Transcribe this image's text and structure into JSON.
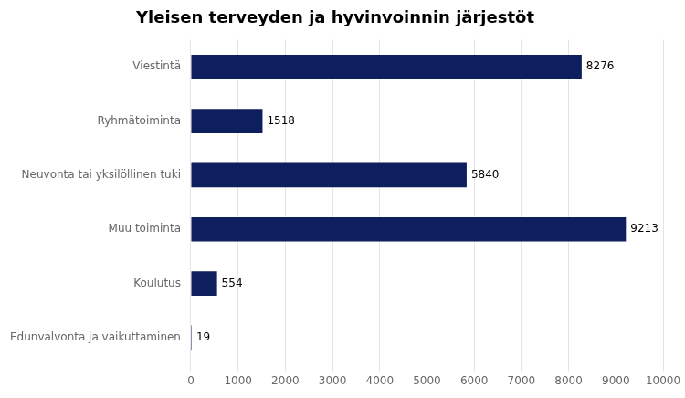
{
  "chart_data": {
    "type": "bar",
    "orientation": "horizontal",
    "title": "Yleisen terveyden ja hyvinvoinnin järjestöt",
    "categories": [
      "Viestintä",
      "Ryhmätoiminta",
      "Neuvonta tai yksilöllinen tuki",
      "Muu toiminta",
      "Koulutus",
      "Edunvalvonta ja vaikuttaminen"
    ],
    "values": [
      8276,
      1518,
      5840,
      9213,
      554,
      19
    ],
    "color": "#0d1f5c",
    "xlim": [
      0,
      10000
    ],
    "xticks": [
      0,
      1000,
      2000,
      3000,
      4000,
      5000,
      6000,
      7000,
      8000,
      9000,
      10000
    ],
    "grid": true,
    "data_labels": true
  }
}
